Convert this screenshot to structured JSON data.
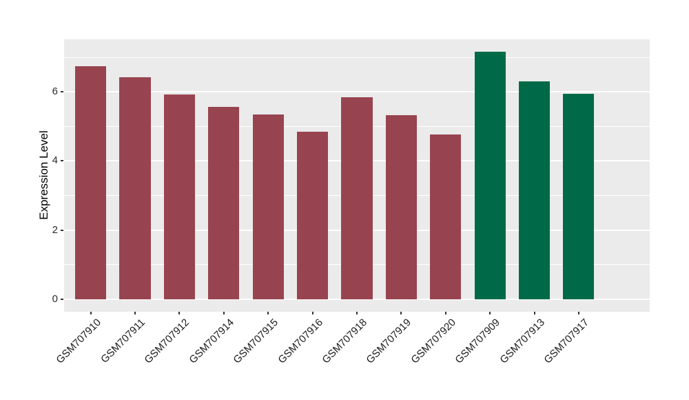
{
  "chart_data": {
    "type": "bar",
    "title": "",
    "xlabel": "",
    "ylabel": "Expression Level",
    "categories": [
      "GSM707910",
      "GSM707911",
      "GSM707912",
      "GSM707914",
      "GSM707915",
      "GSM707916",
      "GSM707918",
      "GSM707919",
      "GSM707920",
      "GSM707909",
      "GSM707913",
      "GSM707917"
    ],
    "values": [
      6.74,
      6.42,
      5.92,
      5.57,
      5.35,
      4.85,
      5.84,
      5.33,
      4.77,
      7.16,
      6.31,
      5.95
    ],
    "groups": [
      "maroon",
      "maroon",
      "maroon",
      "maroon",
      "maroon",
      "maroon",
      "maroon",
      "maroon",
      "maroon",
      "green",
      "green",
      "green"
    ],
    "group_colors": {
      "maroon": "#984450",
      "green": "#006A48"
    },
    "yticks": [
      0,
      2,
      4,
      6
    ],
    "minor_yticks": [
      1,
      3,
      5,
      7
    ],
    "ylim": [
      -0.36,
      7.52
    ],
    "legend_position": "none",
    "grid": "on",
    "panel_background": "#EBEBEB",
    "gridline_color": "#FFFFFF",
    "bar_width_fraction": 0.7
  }
}
